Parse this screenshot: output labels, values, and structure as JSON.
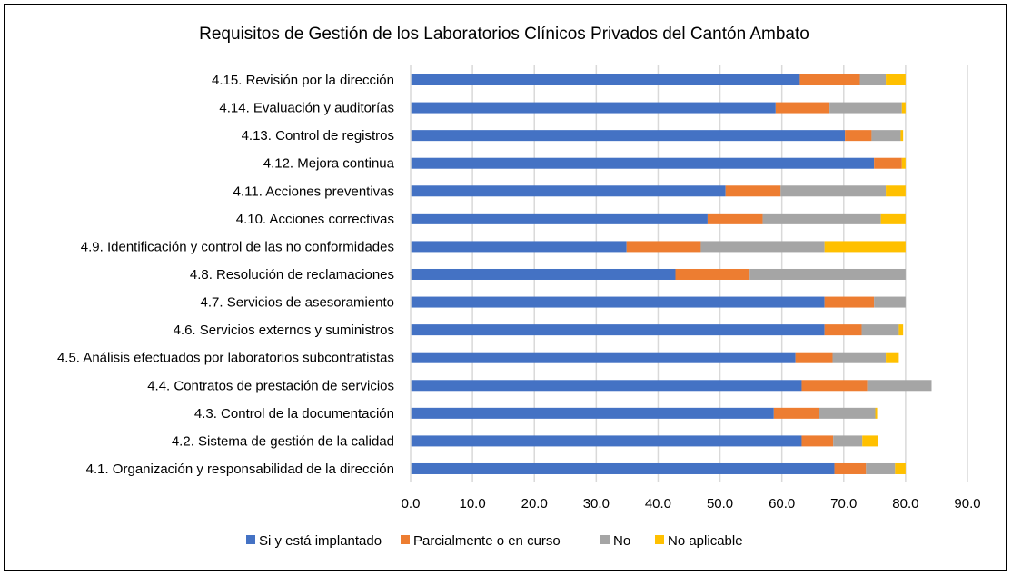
{
  "chart_data": {
    "type": "bar",
    "orientation": "horizontal",
    "stacked": true,
    "title": "Requisitos de Gestión de los Laboratorios Clínicos Privados del Cantón Ambato",
    "xlabel": "",
    "ylabel": "",
    "xlim": [
      0,
      90
    ],
    "xticks": [
      "0.0",
      "10.0",
      "20.0",
      "30.0",
      "40.0",
      "50.0",
      "60.0",
      "70.0",
      "80.0",
      "90.0"
    ],
    "grid": true,
    "legend_position": "bottom",
    "categories": [
      "4.15. Revisión por la dirección",
      "4.14. Evaluación y auditorías",
      "4.13. Control de registros",
      "4.12. Mejora continua",
      "4.11. Acciones preventivas",
      "4.10. Acciones correctivas",
      "4.9. Identificación y control de las no conformidades",
      "4.8. Resolución de reclamaciones",
      "4.7. Servicios de asesoramiento",
      "4.6. Servicios externos y suministros",
      "4.5.  Análisis efectuados por laboratorios subcontratistas",
      "4.4. Contratos de prestación de servicios",
      "4.3. Control de la documentación",
      "4.2. Sistema de gestión de la calidad",
      "4.1. Organización y responsabilidad de la dirección"
    ],
    "series": [
      {
        "name": "Si y está implantado",
        "color": "#4472C4",
        "values": [
          62.9,
          59.0,
          70.2,
          74.9,
          50.9,
          48.0,
          34.9,
          42.8,
          66.9,
          66.9,
          62.2,
          63.2,
          58.7,
          63.2,
          68.5
        ]
      },
      {
        "name": "Parcialmente o en curso",
        "color": "#ED7D31",
        "values": [
          9.7,
          8.7,
          4.3,
          4.5,
          8.9,
          8.9,
          12.0,
          12.0,
          8.0,
          6.0,
          6.0,
          10.6,
          7.3,
          5.1,
          5.1
        ]
      },
      {
        "name": "No",
        "color": "#A5A5A5",
        "values": [
          4.2,
          11.7,
          4.7,
          0,
          17.0,
          19.1,
          20.0,
          25.2,
          5.1,
          6.0,
          8.6,
          10.4,
          9.1,
          4.7,
          4.7
        ]
      },
      {
        "name": "No aplicable",
        "color": "#FFC000",
        "values": [
          3.2,
          0.6,
          0.4,
          0.6,
          3.2,
          4.0,
          13.1,
          0,
          0,
          0.7,
          2.1,
          0,
          0.3,
          2.5,
          1.7
        ]
      }
    ]
  }
}
